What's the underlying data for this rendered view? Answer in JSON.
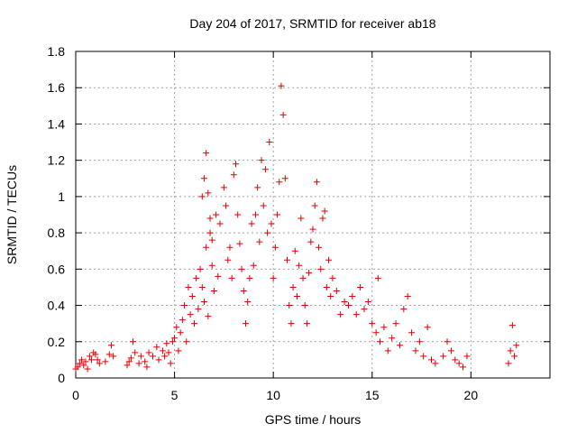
{
  "chart_data": {
    "type": "scatter",
    "title": "Day 204 of 2017, SRMTID for receiver ab18",
    "xlabel": "GPS time / hours",
    "ylabel": "SRMTID / TECUs",
    "xlim": [
      0,
      24
    ],
    "ylim": [
      0,
      1.8
    ],
    "x_ticks": [
      0,
      5,
      10,
      15,
      20
    ],
    "x_tick_labels": [
      "0",
      "5",
      "10",
      "15",
      "20"
    ],
    "y_ticks": [
      0,
      0.2,
      0.4,
      0.6,
      0.8,
      1.0,
      1.2,
      1.4,
      1.6,
      1.8
    ],
    "y_tick_labels": [
      "0",
      "0.2",
      "0.4",
      "0.6",
      "0.8",
      "1",
      "1.2",
      "1.4",
      "1.6",
      "1.8"
    ],
    "grid": true,
    "marker": "+",
    "color": "#e00000",
    "series": [
      {
        "name": "SRMTID",
        "points": [
          [
            0.0,
            0.05
          ],
          [
            0.1,
            0.06
          ],
          [
            0.2,
            0.08
          ],
          [
            0.3,
            0.1
          ],
          [
            0.4,
            0.07
          ],
          [
            0.5,
            0.09
          ],
          [
            0.6,
            0.05
          ],
          [
            0.7,
            0.12
          ],
          [
            0.8,
            0.1
          ],
          [
            0.9,
            0.14
          ],
          [
            1.0,
            0.13
          ],
          [
            1.1,
            0.1
          ],
          [
            1.2,
            0.08
          ],
          [
            1.5,
            0.09
          ],
          [
            1.7,
            0.13
          ],
          [
            1.8,
            0.18
          ],
          [
            1.9,
            0.12
          ],
          [
            2.6,
            0.07
          ],
          [
            2.7,
            0.09
          ],
          [
            2.8,
            0.11
          ],
          [
            2.9,
            0.2
          ],
          [
            3.0,
            0.14
          ],
          [
            3.2,
            0.08
          ],
          [
            3.3,
            0.12
          ],
          [
            3.5,
            0.09
          ],
          [
            3.6,
            0.06
          ],
          [
            3.7,
            0.14
          ],
          [
            3.9,
            0.12
          ],
          [
            4.1,
            0.17
          ],
          [
            4.2,
            0.1
          ],
          [
            4.4,
            0.15
          ],
          [
            4.5,
            0.12
          ],
          [
            4.6,
            0.19
          ],
          [
            4.7,
            0.14
          ],
          [
            4.8,
            0.08
          ],
          [
            4.9,
            0.2
          ],
          [
            5.0,
            0.22
          ],
          [
            5.1,
            0.28
          ],
          [
            5.2,
            0.15
          ],
          [
            5.3,
            0.25
          ],
          [
            5.4,
            0.32
          ],
          [
            5.5,
            0.4
          ],
          [
            5.6,
            0.2
          ],
          [
            5.7,
            0.5
          ],
          [
            5.8,
            0.35
          ],
          [
            5.9,
            0.45
          ],
          [
            6.0,
            0.3
          ],
          [
            6.1,
            0.55
          ],
          [
            6.2,
            0.38
          ],
          [
            6.3,
            0.6
          ],
          [
            6.4,
            0.5
          ],
          [
            6.5,
            0.42
          ],
          [
            6.6,
            0.72
          ],
          [
            6.7,
            0.34
          ],
          [
            6.8,
            0.8
          ],
          [
            6.9,
            0.62
          ],
          [
            7.0,
            0.48
          ],
          [
            7.1,
            0.9
          ],
          [
            7.2,
            0.56
          ],
          [
            6.4,
            1.0
          ],
          [
            6.5,
            1.1
          ],
          [
            6.6,
            1.24
          ],
          [
            6.7,
            1.02
          ],
          [
            6.8,
            0.88
          ],
          [
            6.9,
            0.76
          ],
          [
            7.3,
            0.85
          ],
          [
            7.5,
            1.05
          ],
          [
            7.6,
            0.95
          ],
          [
            7.7,
            0.65
          ],
          [
            7.8,
            0.72
          ],
          [
            7.9,
            0.55
          ],
          [
            8.0,
            1.12
          ],
          [
            8.1,
            1.18
          ],
          [
            8.2,
            0.9
          ],
          [
            8.3,
            0.74
          ],
          [
            8.4,
            0.6
          ],
          [
            8.5,
            0.48
          ],
          [
            8.6,
            0.3
          ],
          [
            8.7,
            0.42
          ],
          [
            8.8,
            0.55
          ],
          [
            8.9,
            0.85
          ],
          [
            9.0,
            0.62
          ],
          [
            9.1,
            0.9
          ],
          [
            9.2,
            1.05
          ],
          [
            9.3,
            0.75
          ],
          [
            9.4,
            1.2
          ],
          [
            9.5,
            0.95
          ],
          [
            9.6,
            1.15
          ],
          [
            9.7,
            0.8
          ],
          [
            9.8,
            1.3
          ],
          [
            9.9,
            0.85
          ],
          [
            10.0,
            0.55
          ],
          [
            10.1,
            0.72
          ],
          [
            10.2,
            0.9
          ],
          [
            10.3,
            1.08
          ],
          [
            10.4,
            1.61
          ],
          [
            10.5,
            1.45
          ],
          [
            10.6,
            1.1
          ],
          [
            10.7,
            0.65
          ],
          [
            10.8,
            0.4
          ],
          [
            10.9,
            0.3
          ],
          [
            11.0,
            0.5
          ],
          [
            11.1,
            0.7
          ],
          [
            11.2,
            0.45
          ],
          [
            11.3,
            0.62
          ],
          [
            11.4,
            0.88
          ],
          [
            11.5,
            0.55
          ],
          [
            11.6,
            0.4
          ],
          [
            11.7,
            0.3
          ],
          [
            11.8,
            0.58
          ],
          [
            11.9,
            0.75
          ],
          [
            12.0,
            0.82
          ],
          [
            12.1,
            0.95
          ],
          [
            12.2,
            1.08
          ],
          [
            12.3,
            0.72
          ],
          [
            12.4,
            0.6
          ],
          [
            12.5,
            0.88
          ],
          [
            12.6,
            0.92
          ],
          [
            12.7,
            0.5
          ],
          [
            12.8,
            0.65
          ],
          [
            12.9,
            0.45
          ],
          [
            13.0,
            0.55
          ],
          [
            13.2,
            0.48
          ],
          [
            13.4,
            0.35
          ],
          [
            13.6,
            0.42
          ],
          [
            13.8,
            0.4
          ],
          [
            14.0,
            0.45
          ],
          [
            14.2,
            0.35
          ],
          [
            14.4,
            0.5
          ],
          [
            14.6,
            0.38
          ],
          [
            14.8,
            0.42
          ],
          [
            15.0,
            0.3
          ],
          [
            15.2,
            0.25
          ],
          [
            15.3,
            0.55
          ],
          [
            15.4,
            0.2
          ],
          [
            15.6,
            0.28
          ],
          [
            15.8,
            0.15
          ],
          [
            16.0,
            0.22
          ],
          [
            16.2,
            0.3
          ],
          [
            16.4,
            0.18
          ],
          [
            16.6,
            0.38
          ],
          [
            16.8,
            0.45
          ],
          [
            17.0,
            0.25
          ],
          [
            17.2,
            0.15
          ],
          [
            17.4,
            0.2
          ],
          [
            17.6,
            0.12
          ],
          [
            17.8,
            0.28
          ],
          [
            18.0,
            0.1
          ],
          [
            18.2,
            0.08
          ],
          [
            18.6,
            0.12
          ],
          [
            18.8,
            0.2
          ],
          [
            19.0,
            0.15
          ],
          [
            19.2,
            0.1
          ],
          [
            19.4,
            0.08
          ],
          [
            19.6,
            0.06
          ],
          [
            19.8,
            0.12
          ],
          [
            21.9,
            0.08
          ],
          [
            22.0,
            0.15
          ],
          [
            22.1,
            0.29
          ],
          [
            22.2,
            0.12
          ],
          [
            22.3,
            0.18
          ]
        ]
      }
    ]
  }
}
